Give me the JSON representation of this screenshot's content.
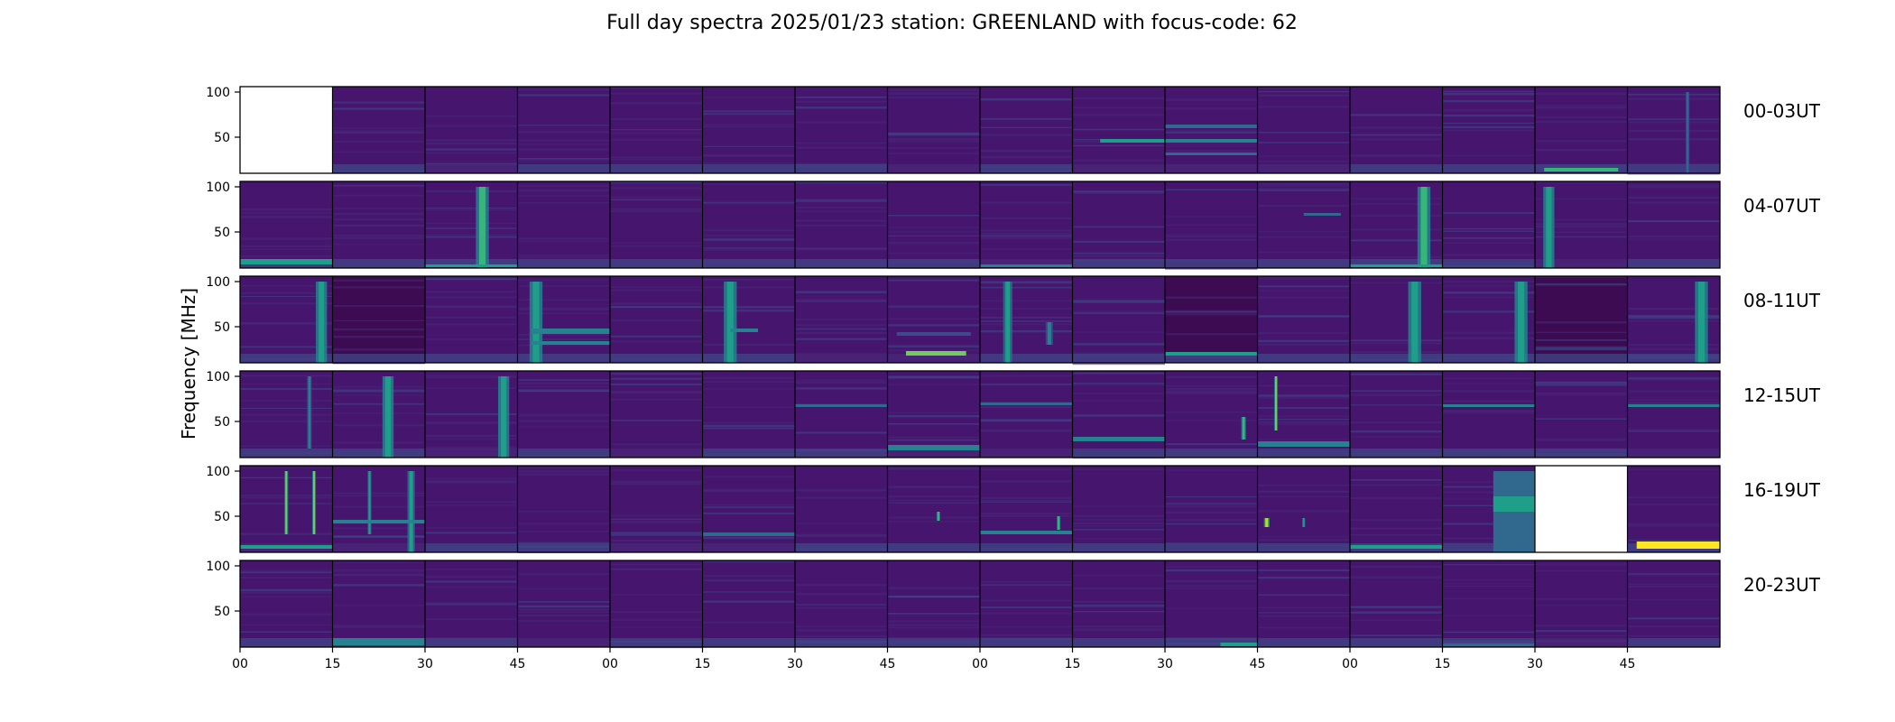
{
  "title": "Full day spectra 2025/01/23 station: GREENLAND with focus-code: 62",
  "chart_data": {
    "type": "heatmap",
    "ylabel": "Frequency [MHz]",
    "y_ticks": [
      100,
      50
    ],
    "ylim": [
      10,
      106
    ],
    "x_tick_labels": [
      "00",
      "15",
      "30",
      "45",
      "00",
      "15",
      "30",
      "45",
      "00",
      "15",
      "30",
      "45",
      "00",
      "15",
      "30",
      "45"
    ],
    "colormap": [
      "#440154",
      "#482878",
      "#3e4a89",
      "#31688e",
      "#26828e",
      "#1f9e89",
      "#35b779",
      "#6ece58",
      "#b5de2b",
      "#fde725"
    ],
    "rows": [
      {
        "label": "00-03UT",
        "missing": [
          0
        ],
        "events": [
          {
            "p": 15,
            "type": "vline",
            "t": 0.65,
            "w": 0.04,
            "f0": 10,
            "f1": 100,
            "i": 0.35
          },
          {
            "p": 14,
            "type": "hband",
            "t0": 0.1,
            "t1": 0.9,
            "f0": 12,
            "f1": 16,
            "i": 0.65
          },
          {
            "p": 9,
            "type": "hband",
            "t0": 0.3,
            "t1": 1.0,
            "f0": 44,
            "f1": 48,
            "i": 0.5
          },
          {
            "p": 10,
            "type": "hband",
            "t0": 0.0,
            "t1": 1.0,
            "f0": 44,
            "f1": 48,
            "i": 0.4
          },
          {
            "p": 10,
            "type": "hband",
            "t0": 0.0,
            "t1": 1.0,
            "f0": 60,
            "f1": 64,
            "i": 0.35
          },
          {
            "p": 10,
            "type": "hband",
            "t0": 0.0,
            "t1": 1.0,
            "f0": 30,
            "f1": 33,
            "i": 0.35
          }
        ]
      },
      {
        "label": "04-07UT",
        "missing": [],
        "events": [
          {
            "p": 0,
            "type": "hband",
            "t0": 0.0,
            "t1": 1.0,
            "f0": 14,
            "f1": 20,
            "i": 0.55
          },
          {
            "p": 2,
            "type": "vline",
            "t": 0.62,
            "w": 0.14,
            "f0": 10,
            "f1": 100,
            "i": 0.7
          },
          {
            "p": 2,
            "type": "hband",
            "t0": 0.0,
            "t1": 1.0,
            "f0": 11,
            "f1": 14,
            "i": 0.55
          },
          {
            "p": 8,
            "type": "hband",
            "t0": 0.0,
            "t1": 1.0,
            "f0": 11,
            "f1": 14,
            "i": 0.45
          },
          {
            "p": 12,
            "type": "vline",
            "t": 0.8,
            "w": 0.14,
            "f0": 10,
            "f1": 100,
            "i": 0.65
          },
          {
            "p": 12,
            "type": "hband",
            "t0": 0.0,
            "t1": 1.0,
            "f0": 11,
            "f1": 14,
            "i": 0.5
          },
          {
            "p": 14,
            "type": "vline",
            "t": 0.15,
            "w": 0.12,
            "f0": 10,
            "f1": 100,
            "i": 0.6
          },
          {
            "p": 11,
            "type": "hband",
            "t0": 0.5,
            "t1": 0.9,
            "f0": 68,
            "f1": 71,
            "i": 0.3
          }
        ]
      },
      {
        "label": "08-11UT",
        "missing": [],
        "events": [
          {
            "p": 0,
            "type": "vline",
            "t": 0.88,
            "w": 0.12,
            "f0": 10,
            "f1": 100,
            "i": 0.6
          },
          {
            "p": 1,
            "type": "dark"
          },
          {
            "p": 3,
            "type": "vline",
            "t": 0.2,
            "w": 0.14,
            "f0": 10,
            "f1": 100,
            "i": 0.6
          },
          {
            "p": 3,
            "type": "hband",
            "t0": 0.15,
            "t1": 1.0,
            "f0": 42,
            "f1": 48,
            "i": 0.45
          },
          {
            "p": 3,
            "type": "hband",
            "t0": 0.15,
            "t1": 1.0,
            "f0": 30,
            "f1": 34,
            "i": 0.4
          },
          {
            "p": 5,
            "type": "vline",
            "t": 0.3,
            "w": 0.14,
            "f0": 10,
            "f1": 100,
            "i": 0.6
          },
          {
            "p": 5,
            "type": "hband",
            "t0": 0.3,
            "t1": 0.6,
            "f0": 44,
            "f1": 48,
            "i": 0.4
          },
          {
            "p": 7,
            "type": "hband",
            "t0": 0.2,
            "t1": 0.85,
            "f0": 18,
            "f1": 23,
            "i": 0.8
          },
          {
            "p": 7,
            "type": "hband",
            "t0": 0.1,
            "t1": 0.9,
            "f0": 40,
            "f1": 44,
            "i": 0.25
          },
          {
            "p": 8,
            "type": "vline",
            "t": 0.3,
            "w": 0.1,
            "f0": 10,
            "f1": 100,
            "i": 0.55
          },
          {
            "p": 8,
            "type": "vline",
            "t": 0.75,
            "w": 0.08,
            "f0": 30,
            "f1": 55,
            "i": 0.4
          },
          {
            "p": 10,
            "type": "dark"
          },
          {
            "p": 10,
            "type": "hband",
            "t0": 0.0,
            "t1": 1.0,
            "f0": 18,
            "f1": 22,
            "i": 0.6
          },
          {
            "p": 12,
            "type": "vline",
            "t": 0.7,
            "w": 0.14,
            "f0": 10,
            "f1": 100,
            "i": 0.6
          },
          {
            "p": 13,
            "type": "vline",
            "t": 0.85,
            "w": 0.14,
            "f0": 10,
            "f1": 100,
            "i": 0.6
          },
          {
            "p": 14,
            "type": "dark"
          },
          {
            "p": 15,
            "type": "vline",
            "t": 0.8,
            "w": 0.14,
            "f0": 10,
            "f1": 100,
            "i": 0.6
          }
        ]
      },
      {
        "label": "12-15UT",
        "missing": [],
        "events": [
          {
            "p": 0,
            "type": "vline",
            "t": 0.75,
            "w": 0.05,
            "f0": 20,
            "f1": 100,
            "i": 0.4
          },
          {
            "p": 1,
            "type": "vline",
            "t": 0.6,
            "w": 0.12,
            "f0": 10,
            "f1": 100,
            "i": 0.6
          },
          {
            "p": 2,
            "type": "vline",
            "t": 0.85,
            "w": 0.12,
            "f0": 10,
            "f1": 100,
            "i": 0.6
          },
          {
            "p": 6,
            "type": "hband",
            "t0": 0.0,
            "t1": 1.0,
            "f0": 66,
            "f1": 69,
            "i": 0.35
          },
          {
            "p": 7,
            "type": "hband",
            "t0": 0.0,
            "t1": 1.0,
            "f0": 18,
            "f1": 24,
            "i": 0.4
          },
          {
            "p": 8,
            "type": "hband",
            "t0": 0.0,
            "t1": 1.0,
            "f0": 68,
            "f1": 71,
            "i": 0.35
          },
          {
            "p": 9,
            "type": "hband",
            "t0": 0.0,
            "t1": 1.0,
            "f0": 28,
            "f1": 33,
            "i": 0.45
          },
          {
            "p": 10,
            "type": "vline",
            "t": 0.85,
            "w": 0.05,
            "f0": 30,
            "f1": 55,
            "i": 0.7
          },
          {
            "p": 11,
            "type": "vline",
            "t": 0.2,
            "w": 0.04,
            "f0": 40,
            "f1": 100,
            "i": 0.75
          },
          {
            "p": 11,
            "type": "hband",
            "t0": 0.0,
            "t1": 1.0,
            "f0": 22,
            "f1": 28,
            "i": 0.45
          },
          {
            "p": 13,
            "type": "hband",
            "t0": 0.0,
            "t1": 1.0,
            "f0": 66,
            "f1": 69,
            "i": 0.4
          },
          {
            "p": 15,
            "type": "hband",
            "t0": 0.0,
            "t1": 1.0,
            "f0": 66,
            "f1": 69,
            "i": 0.4
          }
        ]
      },
      {
        "label": "16-19UT",
        "missing": [
          14
        ],
        "events": [
          {
            "p": 0,
            "type": "vline",
            "t": 0.5,
            "w": 0.04,
            "f0": 30,
            "f1": 100,
            "i": 0.75
          },
          {
            "p": 0,
            "type": "vline",
            "t": 0.8,
            "w": 0.04,
            "f0": 30,
            "f1": 100,
            "i": 0.75
          },
          {
            "p": 0,
            "type": "hband",
            "t0": 0.0,
            "t1": 1.0,
            "f0": 14,
            "f1": 18,
            "i": 0.5
          },
          {
            "p": 1,
            "type": "vline",
            "t": 0.4,
            "w": 0.04,
            "f0": 30,
            "f1": 100,
            "i": 0.55
          },
          {
            "p": 1,
            "type": "vline",
            "t": 0.85,
            "w": 0.08,
            "f0": 10,
            "f1": 100,
            "i": 0.55
          },
          {
            "p": 1,
            "type": "hband",
            "t0": 0.0,
            "t1": 1.0,
            "f0": 42,
            "f1": 46,
            "i": 0.4
          },
          {
            "p": 5,
            "type": "hband",
            "t0": 0.0,
            "t1": 1.0,
            "f0": 28,
            "f1": 32,
            "i": 0.35
          },
          {
            "p": 7,
            "type": "vline",
            "t": 0.55,
            "w": 0.04,
            "f0": 45,
            "f1": 55,
            "i": 0.7
          },
          {
            "p": 8,
            "type": "vline",
            "t": 0.85,
            "w": 0.04,
            "f0": 35,
            "f1": 50,
            "i": 0.7
          },
          {
            "p": 8,
            "type": "hband",
            "t0": 0.0,
            "t1": 1.0,
            "f0": 30,
            "f1": 34,
            "i": 0.45
          },
          {
            "p": 11,
            "type": "vline",
            "t": 0.1,
            "w": 0.06,
            "f0": 38,
            "f1": 48,
            "i": 0.85
          },
          {
            "p": 11,
            "type": "vline",
            "t": 0.5,
            "w": 0.03,
            "f0": 38,
            "f1": 48,
            "i": 0.6
          },
          {
            "p": 12,
            "type": "hband",
            "t0": 0.0,
            "t1": 1.0,
            "f0": 14,
            "f1": 18,
            "i": 0.55
          },
          {
            "p": 13,
            "type": "hband",
            "t0": 0.55,
            "t1": 1.0,
            "f0": 10,
            "f1": 100,
            "i": 0.35
          },
          {
            "p": 13,
            "type": "hband",
            "t0": 0.55,
            "t1": 1.0,
            "f0": 55,
            "f1": 72,
            "i": 0.55
          },
          {
            "p": 15,
            "type": "hband",
            "t0": 0.1,
            "t1": 1.0,
            "f0": 14,
            "f1": 22,
            "i": 0.95
          }
        ]
      },
      {
        "label": "20-23UT",
        "missing": [],
        "events": [
          {
            "p": 1,
            "type": "hband",
            "t0": 0.0,
            "t1": 1.0,
            "f0": 12,
            "f1": 20,
            "i": 0.4
          },
          {
            "p": 10,
            "type": "hband",
            "t0": 0.6,
            "t1": 1.0,
            "f0": 11,
            "f1": 15,
            "i": 0.5
          },
          {
            "p": 13,
            "type": "hband",
            "t0": 0.0,
            "t1": 1.0,
            "f0": 11,
            "f1": 14,
            "i": 0.3
          }
        ]
      }
    ]
  }
}
